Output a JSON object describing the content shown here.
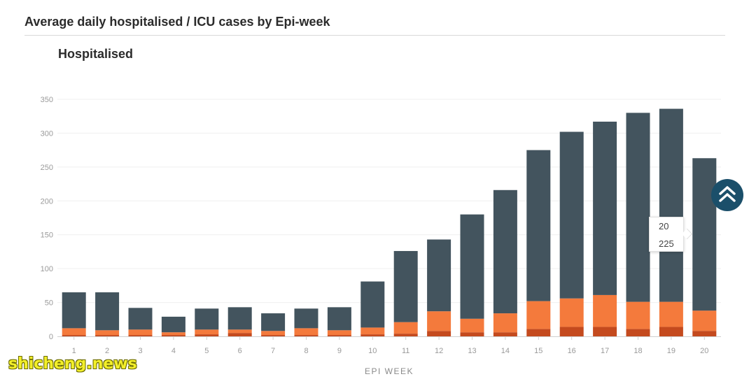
{
  "page": {
    "title": "Average daily hospitalised / ICU cases by Epi-week"
  },
  "chart_data": {
    "type": "bar",
    "stacked": true,
    "title": "Hospitalised",
    "xlabel": "EPI WEEK",
    "ylabel": "",
    "ylim": [
      0,
      350
    ],
    "yticks": [
      0,
      50,
      100,
      150,
      200,
      250,
      300,
      350
    ],
    "grid": true,
    "legend": "none",
    "categories": [
      "1",
      "2",
      "3",
      "4",
      "5",
      "6",
      "7",
      "8",
      "9",
      "10",
      "11",
      "12",
      "13",
      "14",
      "15",
      "16",
      "17",
      "18",
      "19",
      "20"
    ],
    "series": [
      {
        "color": "#c44a1e",
        "values": [
          2,
          2,
          2,
          2,
          3,
          5,
          2,
          2,
          2,
          3,
          4,
          8,
          6,
          6,
          11,
          14,
          14,
          11,
          14,
          8
        ]
      },
      {
        "color": "#f47a3c",
        "values": [
          10,
          7,
          8,
          4,
          7,
          5,
          6,
          10,
          7,
          10,
          17,
          29,
          20,
          28,
          41,
          42,
          47,
          40,
          37,
          30
        ]
      },
      {
        "color": "#43545e",
        "values": [
          53,
          56,
          32,
          23,
          31,
          33,
          26,
          29,
          34,
          68,
          105,
          106,
          154,
          182,
          223,
          246,
          256,
          279,
          285,
          225
        ]
      }
    ],
    "highlight": {
      "category": "20",
      "color": "#dedede",
      "tooltip": {
        "label": "20",
        "value": "225"
      }
    }
  },
  "watermark": {
    "text": "shicheng.news"
  }
}
